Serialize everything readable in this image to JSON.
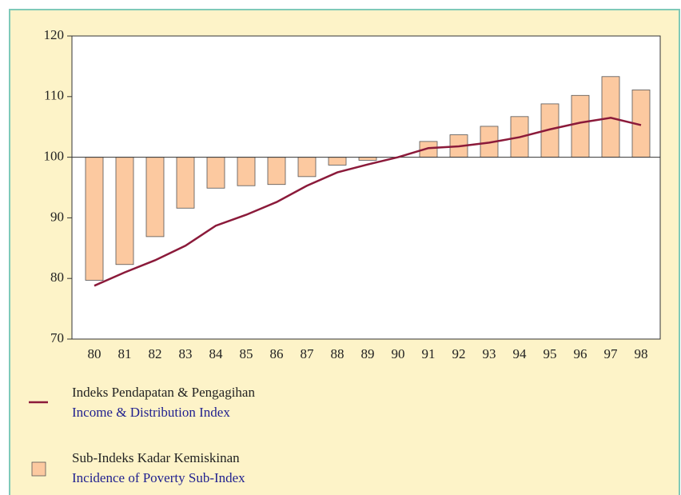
{
  "chart_data": {
    "type": "combo",
    "categories": [
      "80",
      "81",
      "82",
      "83",
      "84",
      "85",
      "86",
      "87",
      "88",
      "89",
      "90",
      "91",
      "92",
      "93",
      "94",
      "95",
      "96",
      "97",
      "98"
    ],
    "ylim": [
      70,
      120
    ],
    "yticks": [
      70,
      80,
      90,
      100,
      110,
      120
    ],
    "bar_baseline": 100,
    "series": [
      {
        "type": "line",
        "name": "Indeks Pendapatan & Pengagihan",
        "name_english": "Income & Distribution Index",
        "color": "#8b1a3a",
        "values": [
          78.8,
          81.0,
          83.0,
          85.4,
          88.7,
          90.5,
          92.6,
          95.3,
          97.5,
          98.8,
          100,
          101.5,
          101.8,
          102.4,
          103.3,
          104.6,
          105.7,
          106.5,
          105.3
        ]
      },
      {
        "type": "bar",
        "name": "Sub-Indeks Kadar Kemiskinan",
        "name_english": "Incidence of Poverty Sub-Index",
        "color": "#fcc9a0",
        "values": [
          79.7,
          82.3,
          86.9,
          91.6,
          94.9,
          95.3,
          95.5,
          96.8,
          98.7,
          99.5,
          100,
          102.6,
          103.7,
          105.1,
          106.7,
          108.8,
          110.2,
          113.3,
          111.1
        ]
      }
    ]
  }
}
